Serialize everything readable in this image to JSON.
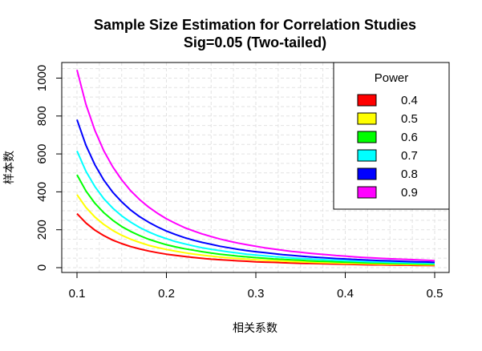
{
  "chart_data": {
    "type": "line",
    "title": "Sample Size Estimation for Correlation Studies",
    "subtitle": "Sig=0.05 (Two-tailed)",
    "xlabel": "相关系数",
    "ylabel": "样本数",
    "xlim": [
      0.1,
      0.5
    ],
    "ylim": [
      0,
      1040
    ],
    "xticks": [
      "0.1",
      "0.2",
      "0.3",
      "0.4",
      "0.5"
    ],
    "yticks": [
      "0",
      "200",
      "400",
      "600",
      "800",
      "1000"
    ],
    "grid": true,
    "legend": {
      "title": "Power",
      "position": "top-right"
    },
    "x": [
      0.1,
      0.11,
      0.12,
      0.13,
      0.14,
      0.15,
      0.16,
      0.17,
      0.18,
      0.19,
      0.2,
      0.21,
      0.22,
      0.23,
      0.24,
      0.25,
      0.26,
      0.27,
      0.28,
      0.29,
      0.3,
      0.31,
      0.32,
      0.33,
      0.34,
      0.35,
      0.36,
      0.37,
      0.38,
      0.39,
      0.4,
      0.41,
      0.42,
      0.43,
      0.44,
      0.45,
      0.46,
      0.47,
      0.48,
      0.49,
      0.5
    ],
    "series": [
      {
        "name": "0.4",
        "color": "#ff0000",
        "values": [
          285,
          236,
          198,
          169,
          145,
          127,
          111,
          99,
          88,
          79,
          71,
          65,
          59,
          54,
          49,
          45,
          42,
          39,
          36,
          34,
          31,
          29,
          28,
          26,
          24,
          23,
          22,
          21,
          20,
          19,
          18,
          17,
          16,
          15,
          15,
          14,
          13,
          13,
          12,
          12,
          11
        ]
      },
      {
        "name": "0.5",
        "color": "#ffff00",
        "values": [
          385,
          318,
          267,
          228,
          196,
          171,
          150,
          133,
          118,
          106,
          96,
          87,
          79,
          72,
          66,
          61,
          56,
          52,
          48,
          45,
          42,
          39,
          37,
          35,
          32,
          31,
          29,
          27,
          26,
          25,
          23,
          22,
          21,
          20,
          19,
          18,
          18,
          17,
          16,
          15,
          15
        ]
      },
      {
        "name": "0.6",
        "color": "#00ff00",
        "values": [
          490,
          405,
          340,
          290,
          250,
          217,
          191,
          169,
          150,
          135,
          121,
          110,
          100,
          92,
          84,
          77,
          71,
          66,
          61,
          57,
          53,
          50,
          46,
          44,
          41,
          39,
          36,
          34,
          33,
          31,
          29,
          28,
          26,
          25,
          24,
          23,
          22,
          21,
          20,
          19,
          19
        ]
      },
      {
        "name": "0.7",
        "color": "#00ffff",
        "values": [
          616,
          509,
          428,
          364,
          314,
          273,
          240,
          212,
          189,
          169,
          153,
          138,
          126,
          115,
          105,
          97,
          90,
          83,
          77,
          71,
          67,
          62,
          58,
          55,
          51,
          48,
          46,
          43,
          41,
          39,
          37,
          35,
          33,
          31,
          30,
          28,
          27,
          26,
          25,
          24,
          23
        ]
      },
      {
        "name": "0.8",
        "color": "#0000ff",
        "values": [
          781,
          646,
          543,
          462,
          398,
          347,
          304,
          269,
          240,
          215,
          193,
          175,
          159,
          145,
          133,
          123,
          113,
          105,
          97,
          90,
          84,
          79,
          74,
          69,
          65,
          61,
          57,
          54,
          51,
          48,
          46,
          43,
          41,
          39,
          37,
          36,
          34,
          32,
          31,
          30,
          28
        ]
      },
      {
        "name": "0.9",
        "color": "#ff00ff",
        "values": [
          1043,
          862,
          724,
          617,
          532,
          463,
          406,
          359,
          320,
          287,
          258,
          234,
          212,
          194,
          178,
          164,
          151,
          140,
          130,
          121,
          113,
          105,
          98,
          92,
          86,
          81,
          76,
          72,
          68,
          64,
          61,
          57,
          54,
          52,
          49,
          47,
          45,
          43,
          41,
          39,
          37
        ]
      }
    ]
  }
}
